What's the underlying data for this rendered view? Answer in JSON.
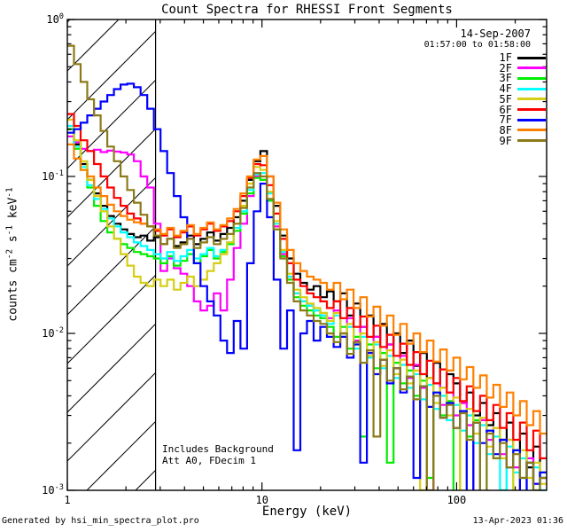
{
  "chart_data": {
    "type": "line",
    "title": "Count Spectra for RHESSI Front Segments",
    "xlabel": "Energy (keV)",
    "ylabel_segments": [
      {
        "t": "counts cm",
        "sup": false
      },
      {
        "t": "-2",
        "sup": true
      },
      {
        "t": " s",
        "sup": false
      },
      {
        "t": "-1",
        "sup": true
      },
      {
        "t": " keV",
        "sup": false
      },
      {
        "t": "-1",
        "sup": true
      }
    ],
    "xscale": "log",
    "yscale": "log",
    "xlim": [
      1,
      290
    ],
    "ylim": [
      0.001,
      1
    ],
    "grid": false,
    "x_ticks": [
      {
        "value": 1,
        "label": "1"
      },
      {
        "value": 10,
        "label": "10"
      },
      {
        "value": 100,
        "label": "100"
      }
    ],
    "y_ticks": [
      {
        "value": 1,
        "exp": "0"
      },
      {
        "value": 0.1,
        "exp": "-1"
      },
      {
        "value": 0.01,
        "exp": "-2"
      },
      {
        "value": 0.001,
        "exp": "-3"
      }
    ],
    "legend": {
      "position": "top-right",
      "date": "14-Sep-2007",
      "time_range": "01:57:00 to 01:58:00"
    },
    "annotations": [
      "Includes Background",
      "Att A0, FDecim 1"
    ],
    "hatch_region": {
      "x_start": 1,
      "x_end": 2.84,
      "style": "diagonal"
    },
    "x_grid": {
      "log_min": 0,
      "log_max": 2.4624,
      "n_bins": 72
    },
    "series": [
      {
        "name": "1F",
        "color": "#000000",
        "values": [
          0.2,
          0.16,
          0.12,
          0.095,
          0.078,
          0.065,
          0.056,
          0.05,
          0.046,
          0.043,
          0.041,
          0.042,
          0.039,
          0.041,
          0.037,
          0.04,
          0.036,
          0.038,
          0.042,
          0.037,
          0.04,
          0.044,
          0.039,
          0.043,
          0.047,
          0.055,
          0.07,
          0.095,
          0.125,
          0.145,
          0.1,
          0.065,
          0.042,
          0.03,
          0.024,
          0.021,
          0.019,
          0.02,
          0.017,
          0.0185,
          0.016,
          0.018,
          0.013,
          0.0155,
          0.011,
          0.013,
          0.0095,
          0.0115,
          0.0085,
          0.01,
          0.0075,
          0.009,
          0.0062,
          0.0075,
          0.0052,
          0.0065,
          0.0045,
          0.0055,
          0.0048,
          0.0036,
          0.0042,
          0.003,
          0.0036,
          0.0026,
          0.0031,
          0.0021,
          0.0027,
          0.0018,
          0.0023,
          0.0014,
          0.0019,
          0.0012
        ]
      },
      {
        "name": "2F",
        "color": "#FF00FF",
        "values": [
          0.18,
          0.165,
          0.15,
          0.145,
          0.148,
          0.143,
          0.146,
          0.144,
          0.142,
          0.138,
          0.125,
          0.1,
          0.085,
          0.05,
          0.025,
          0.03,
          0.026,
          0.024,
          0.02,
          0.016,
          0.014,
          0.015,
          0.018,
          0.014,
          0.022,
          0.035,
          0.05,
          0.075,
          0.1,
          0.095,
          0.07,
          0.048,
          0.032,
          0.022,
          0.018,
          0.016,
          0.015,
          0.014,
          0.013,
          0.0125,
          0.014,
          0.01,
          0.0125,
          0.009,
          0.011,
          0.0078,
          0.0095,
          0.0068,
          0.0085,
          0.006,
          0.0072,
          0.0052,
          0.0063,
          0.0045,
          0.0008,
          0.0048,
          0.0035,
          0.0042,
          0.003,
          0.0036,
          0.0026,
          0.0006,
          0.0028,
          0.0021,
          0.0025,
          0.0017,
          0.0021,
          0.0014,
          0.0007,
          0.0016,
          0.0011,
          0.0013
        ]
      },
      {
        "name": "3F",
        "color": "#00EE00",
        "values": [
          0.2,
          0.15,
          0.11,
          0.085,
          0.065,
          0.052,
          0.044,
          0.04,
          0.037,
          0.035,
          0.033,
          0.032,
          0.031,
          0.03,
          0.028,
          0.031,
          0.027,
          0.029,
          0.032,
          0.028,
          0.031,
          0.034,
          0.03,
          0.033,
          0.037,
          0.045,
          0.058,
          0.078,
          0.098,
          0.095,
          0.07,
          0.046,
          0.031,
          0.022,
          0.017,
          0.015,
          0.014,
          0.013,
          0.0125,
          0.011,
          0.0095,
          0.011,
          0.008,
          0.0095,
          0.0022,
          0.0085,
          0.006,
          0.0075,
          0.0015,
          0.0065,
          0.0048,
          0.0058,
          0.004,
          0.005,
          0.0012,
          0.0042,
          0.003,
          0.0037,
          0.0008,
          0.0032,
          0.0022,
          0.0028,
          0.0006,
          0.0024,
          0.0016,
          0.0021,
          0.0005,
          0.0018,
          0.0012,
          0.0015,
          0.0004,
          0.0013
        ]
      },
      {
        "name": "4F",
        "color": "#00FFFF",
        "values": [
          0.21,
          0.155,
          0.115,
          0.088,
          0.072,
          0.062,
          0.054,
          0.048,
          0.044,
          0.041,
          0.038,
          0.036,
          0.034,
          0.032,
          0.03,
          0.033,
          0.029,
          0.031,
          0.034,
          0.03,
          0.032,
          0.035,
          0.031,
          0.034,
          0.038,
          0.047,
          0.06,
          0.082,
          0.103,
          0.105,
          0.078,
          0.05,
          0.033,
          0.023,
          0.018,
          0.016,
          0.015,
          0.014,
          0.013,
          0.0115,
          0.013,
          0.0095,
          0.011,
          0.008,
          0.0095,
          0.007,
          0.0085,
          0.006,
          0.0072,
          0.0052,
          0.0063,
          0.0045,
          0.0055,
          0.0038,
          0.0047,
          0.0033,
          0.004,
          0.0028,
          0.0035,
          0.0024,
          0.003,
          0.002,
          0.0026,
          0.0017,
          0.0022,
          0.001,
          0.0019,
          0.0013,
          0.0016,
          0.0009,
          0.0014,
          0.001
        ]
      },
      {
        "name": "5F",
        "color": "#D6CE14",
        "values": [
          0.23,
          0.17,
          0.125,
          0.095,
          0.075,
          0.06,
          0.048,
          0.04,
          0.032,
          0.027,
          0.023,
          0.021,
          0.02,
          0.022,
          0.02,
          0.022,
          0.019,
          0.021,
          0.023,
          0.02,
          0.022,
          0.025,
          0.028,
          0.032,
          0.038,
          0.05,
          0.065,
          0.09,
          0.115,
          0.11,
          0.08,
          0.052,
          0.034,
          0.024,
          0.019,
          0.017,
          0.0155,
          0.0145,
          0.0135,
          0.012,
          0.0135,
          0.01,
          0.0115,
          0.0085,
          0.01,
          0.0072,
          0.0088,
          0.0062,
          0.0078,
          0.0055,
          0.0068,
          0.0048,
          0.0058,
          0.001,
          0.0052,
          0.0036,
          0.0045,
          0.003,
          0.0039,
          0.0007,
          0.0033,
          0.0023,
          0.0029,
          0.0019,
          0.0025,
          0.0016,
          0.0021,
          0.0006,
          0.0018,
          0.0012,
          0.0015,
          0.0011
        ]
      },
      {
        "name": "6F",
        "color": "#FF0000",
        "values": [
          0.25,
          0.21,
          0.17,
          0.145,
          0.12,
          0.1,
          0.085,
          0.073,
          0.065,
          0.058,
          0.054,
          0.05,
          0.048,
          0.045,
          0.042,
          0.046,
          0.041,
          0.044,
          0.048,
          0.042,
          0.046,
          0.05,
          0.045,
          0.048,
          0.052,
          0.06,
          0.075,
          0.098,
          0.12,
          0.118,
          0.088,
          0.058,
          0.04,
          0.028,
          0.022,
          0.02,
          0.018,
          0.017,
          0.016,
          0.0145,
          0.016,
          0.0125,
          0.0145,
          0.011,
          0.0128,
          0.0095,
          0.0112,
          0.0082,
          0.0098,
          0.0072,
          0.0086,
          0.0063,
          0.0076,
          0.0055,
          0.0067,
          0.0048,
          0.0059,
          0.0042,
          0.0052,
          0.0037,
          0.0046,
          0.0032,
          0.004,
          0.0028,
          0.0035,
          0.0025,
          0.0031,
          0.0021,
          0.0027,
          0.0018,
          0.0024,
          0.0016
        ]
      },
      {
        "name": "7F",
        "color": "#0000FF",
        "values": [
          0.19,
          0.2,
          0.22,
          0.245,
          0.27,
          0.3,
          0.33,
          0.36,
          0.385,
          0.39,
          0.37,
          0.33,
          0.27,
          0.2,
          0.145,
          0.105,
          0.075,
          0.055,
          0.04,
          0.028,
          0.02,
          0.016,
          0.013,
          0.009,
          0.0075,
          0.012,
          0.008,
          0.028,
          0.06,
          0.09,
          0.055,
          0.022,
          0.008,
          0.014,
          0.0018,
          0.01,
          0.012,
          0.009,
          0.011,
          0.0095,
          0.0082,
          0.0095,
          0.007,
          0.0085,
          0.0015,
          0.0075,
          0.0055,
          0.0068,
          0.0048,
          0.006,
          0.0042,
          0.0053,
          0.0012,
          0.0046,
          0.0034,
          0.0042,
          0.0029,
          0.0036,
          0.0025,
          0.0032,
          0.0009,
          0.0027,
          0.002,
          0.0024,
          0.0017,
          0.0021,
          0.0014,
          0.0018,
          0.0008,
          0.0015,
          0.0011,
          0.0013
        ]
      },
      {
        "name": "8F",
        "color": "#FF8000",
        "values": [
          0.16,
          0.13,
          0.11,
          0.1,
          0.085,
          0.075,
          0.066,
          0.06,
          0.056,
          0.053,
          0.051,
          0.05,
          0.048,
          0.046,
          0.043,
          0.047,
          0.042,
          0.045,
          0.049,
          0.043,
          0.047,
          0.051,
          0.046,
          0.049,
          0.054,
          0.062,
          0.078,
          0.1,
          0.128,
          0.135,
          0.1,
          0.068,
          0.046,
          0.034,
          0.028,
          0.025,
          0.023,
          0.022,
          0.021,
          0.019,
          0.021,
          0.0165,
          0.019,
          0.0145,
          0.017,
          0.0128,
          0.0148,
          0.0112,
          0.013,
          0.0098,
          0.0115,
          0.0086,
          0.01,
          0.0076,
          0.009,
          0.0066,
          0.0079,
          0.0058,
          0.007,
          0.0051,
          0.0061,
          0.0045,
          0.0054,
          0.0039,
          0.0047,
          0.0034,
          0.0042,
          0.003,
          0.0037,
          0.0026,
          0.0032,
          0.0023
        ]
      },
      {
        "name": "9F",
        "color": "#8C7A19",
        "values": [
          0.68,
          0.52,
          0.4,
          0.31,
          0.245,
          0.195,
          0.155,
          0.125,
          0.1,
          0.082,
          0.068,
          0.057,
          0.048,
          0.042,
          0.037,
          0.04,
          0.035,
          0.037,
          0.04,
          0.035,
          0.038,
          0.041,
          0.037,
          0.04,
          0.043,
          0.05,
          0.063,
          0.085,
          0.105,
          0.1,
          0.072,
          0.046,
          0.03,
          0.021,
          0.016,
          0.014,
          0.013,
          0.012,
          0.0115,
          0.01,
          0.0088,
          0.01,
          0.0074,
          0.0088,
          0.0065,
          0.0078,
          0.0022,
          0.0068,
          0.005,
          0.006,
          0.0044,
          0.0053,
          0.0038,
          0.0046,
          0.001,
          0.004,
          0.0029,
          0.0035,
          0.0025,
          0.0031,
          0.0021,
          0.0027,
          0.0008,
          0.0023,
          0.0016,
          0.002,
          0.0014,
          0.0017,
          0.0012,
          0.0015,
          0.001,
          0.0012
        ]
      }
    ]
  },
  "footer": {
    "left": "Generated by hsi_min_spectra_plot.pro",
    "right": "13-Apr-2023 01:36"
  }
}
